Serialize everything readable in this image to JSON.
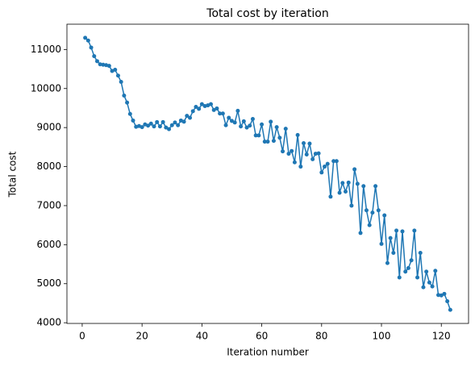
{
  "chart_data": {
    "type": "line",
    "title": "Total cost by iteration",
    "x_label": "Iteration number",
    "y_label": "Total cost",
    "x": [
      1,
      2,
      3,
      4,
      5,
      6,
      7,
      8,
      9,
      10,
      11,
      12,
      13,
      14,
      15,
      16,
      17,
      18,
      19,
      20,
      21,
      22,
      23,
      24,
      25,
      26,
      27,
      28,
      29,
      30,
      31,
      32,
      33,
      34,
      35,
      36,
      37,
      38,
      39,
      40,
      41,
      42,
      43,
      44,
      45,
      46,
      47,
      48,
      49,
      50,
      51,
      52,
      53,
      54,
      55,
      56,
      57,
      58,
      59,
      60,
      61,
      62,
      63,
      64,
      65,
      66,
      67,
      68,
      69,
      70,
      71,
      72,
      73,
      74,
      75,
      76,
      77,
      78,
      79,
      80,
      81,
      82,
      83,
      84,
      85,
      86,
      87,
      88,
      89,
      90,
      91,
      92,
      93,
      94,
      95,
      96,
      97,
      98,
      99,
      100,
      101,
      102,
      103,
      104,
      105,
      106,
      107,
      108,
      109,
      110,
      111,
      112,
      113,
      114,
      115,
      116,
      117,
      118,
      119,
      120,
      121,
      122,
      123
    ],
    "series": [
      {
        "name": "Total cost",
        "color": "#1f77b4",
        "values": [
          11300,
          11230,
          11050,
          10830,
          10700,
          10620,
          10610,
          10600,
          10580,
          10450,
          10480,
          10330,
          10170,
          9820,
          9640,
          9350,
          9180,
          9020,
          9040,
          9010,
          9080,
          9050,
          9100,
          9030,
          9140,
          9030,
          9140,
          9000,
          8960,
          9060,
          9130,
          9060,
          9180,
          9150,
          9300,
          9250,
          9420,
          9530,
          9480,
          9600,
          9550,
          9570,
          9600,
          9450,
          9490,
          9360,
          9360,
          9060,
          9250,
          9170,
          9130,
          9430,
          9030,
          9160,
          9000,
          9050,
          9220,
          8800,
          8800,
          9080,
          8640,
          8640,
          9150,
          8660,
          9010,
          8740,
          8390,
          8970,
          8330,
          8400,
          8110,
          8810,
          8000,
          8600,
          8310,
          8590,
          8190,
          8330,
          8340,
          7850,
          8000,
          8070,
          7230,
          8140,
          8140,
          7330,
          7580,
          7360,
          7590,
          7000,
          7930,
          7560,
          6300,
          7500,
          6880,
          6500,
          6820,
          7500,
          6880,
          6020,
          6750,
          5530,
          6170,
          5790,
          6360,
          5160,
          6340,
          5310,
          5400,
          5600,
          6360,
          5160,
          5790,
          4910,
          5310,
          5030,
          4930,
          5330,
          4710,
          4700,
          4740,
          4550,
          4330
        ]
      }
    ],
    "xlim": [
      -5.1,
      129.1
    ],
    "xticks": [
      0,
      20,
      40,
      60,
      80,
      100,
      120
    ],
    "ylim": [
      3982,
      11648
    ],
    "yticks": [
      4000,
      5000,
      6000,
      7000,
      8000,
      9000,
      10000,
      11000
    ],
    "grid": false
  }
}
